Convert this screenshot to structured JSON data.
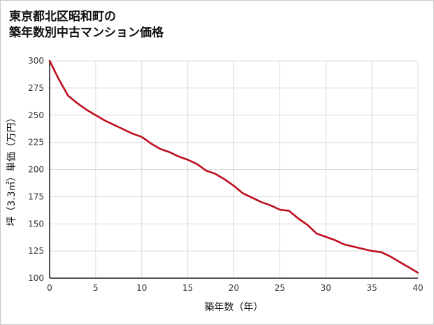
{
  "chart_data": {
    "type": "line",
    "title_line1": "東京都北区昭和町の",
    "title_line2": "築年数別中古マンション価格",
    "xlabel": "築年数（年）",
    "ylabel": "坪（3.3㎡）単価（万円）",
    "xlim": [
      0,
      40
    ],
    "ylim": [
      100,
      300
    ],
    "x_ticks": [
      0,
      5,
      10,
      15,
      20,
      25,
      30,
      35,
      40
    ],
    "y_ticks": [
      100,
      125,
      150,
      175,
      200,
      225,
      250,
      275,
      300
    ],
    "grid": true,
    "legend": "none",
    "line_color": "#bf0d1d",
    "axis_color": "#1a1a1a",
    "grid_color": "#dcdcdc",
    "series": [
      {
        "name": "坪単価",
        "x": [
          0,
          1,
          2,
          3,
          4,
          5,
          6,
          7,
          8,
          9,
          10,
          11,
          12,
          13,
          14,
          15,
          16,
          17,
          18,
          19,
          20,
          21,
          22,
          23,
          24,
          25,
          26,
          27,
          28,
          29,
          30,
          31,
          32,
          33,
          34,
          35,
          36,
          37,
          38,
          39,
          40
        ],
        "y": [
          300,
          283,
          268,
          261,
          255,
          250,
          245,
          241,
          237,
          233,
          230,
          224,
          219,
          216,
          212,
          209,
          205,
          199,
          196,
          191,
          185,
          178,
          174,
          170,
          167,
          163,
          162,
          155,
          149,
          141,
          138,
          135,
          131,
          129,
          127,
          125,
          124,
          120,
          115,
          110,
          105
        ]
      }
    ]
  }
}
